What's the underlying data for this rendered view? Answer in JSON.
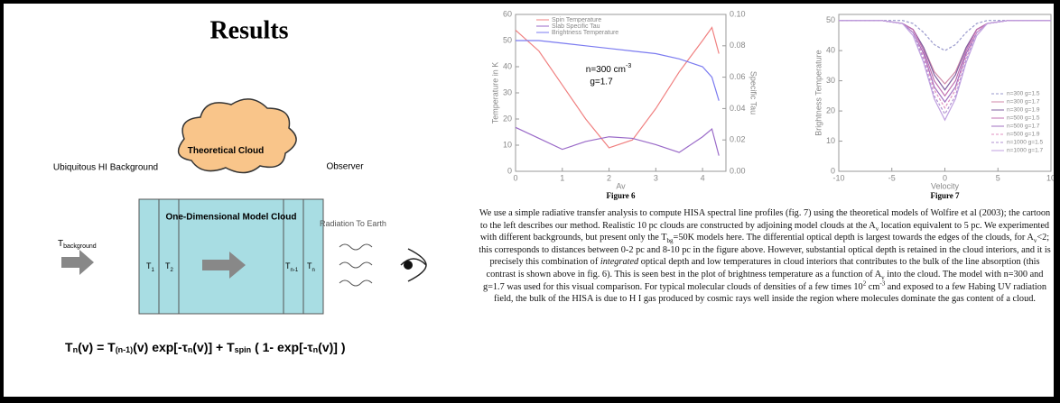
{
  "panel": {
    "title": "Results",
    "left_label": "Ubiquitous HI Background",
    "cloud_label": "Theoretical Cloud",
    "right_label": "Observer",
    "background_label": [
      "T",
      "background"
    ],
    "box_title": "One-Dimensional Model Cloud",
    "cells": [
      [
        "T",
        "1"
      ],
      [
        "T",
        "2"
      ],
      [
        "T",
        "n-1"
      ],
      [
        "T",
        "n"
      ]
    ],
    "radiation_label": "Radiation To Earth",
    "equation": [
      "T",
      "n",
      "(v) = T",
      "(n-1)",
      "(v)  exp[-τ",
      "n",
      "(v)] + T",
      "spin",
      " ( 1- exp[-τ",
      "n",
      "(v)] )"
    ]
  },
  "figure6": {
    "type": "line",
    "caption": "Figure 6",
    "ylabel": "Temperature in K",
    "y2label": "Specific Tau",
    "xlabel": "Av",
    "annotation": [
      "n=300 cm",
      "-3",
      "g=1.7"
    ],
    "x": [
      0,
      0.5,
      1,
      1.5,
      2,
      2.5,
      3,
      3.5,
      4,
      4.2,
      4.35
    ],
    "series": [
      {
        "name": "Spin Temperature",
        "color": "#f08080",
        "values": [
          54,
          46,
          33,
          20,
          9,
          12,
          24,
          38,
          50,
          55,
          45
        ]
      },
      {
        "name": "Slab Specific Tau",
        "color": "#9a6ac8",
        "axis": "y2",
        "values": [
          0.028,
          0.021,
          0.014,
          0.019,
          0.022,
          0.021,
          0.017,
          0.012,
          0.022,
          0.027,
          0.01
        ]
      },
      {
        "name": "Brightness Temperature",
        "color": "#7b7bf0",
        "values": [
          50,
          50,
          49,
          48,
          47,
          46,
          45,
          43,
          40,
          36,
          27
        ]
      }
    ],
    "xlim": [
      0,
      4.5
    ],
    "xticks": [
      0,
      1,
      2,
      3,
      4
    ],
    "ylim": [
      0,
      60
    ],
    "yticks": [
      0,
      10,
      20,
      30,
      40,
      50,
      60
    ],
    "y2lim": [
      0,
      0.1
    ],
    "y2ticks": [
      {
        "value": 0,
        "label": "0.00"
      },
      {
        "value": 0.02,
        "label": "0.02"
      },
      {
        "value": 0.04,
        "label": "0.04"
      },
      {
        "value": 0.06,
        "label": "0.06"
      },
      {
        "value": 0.08,
        "label": "0.08"
      },
      {
        "value": 0.1,
        "label": "0.10"
      }
    ]
  },
  "figure7": {
    "type": "line",
    "caption": "Figure 7",
    "ylabel": "Brightness Temperature",
    "xlabel": "Velocity",
    "x": [
      -10,
      -6,
      -4,
      -3,
      -2,
      -1,
      0,
      1,
      2,
      3,
      4,
      6,
      10
    ],
    "series": [
      {
        "name": "n=300 g=1.5",
        "color": "#9999cc",
        "dashed": true,
        "values": [
          50,
          50,
          50,
          49,
          46,
          42,
          40,
          42,
          46,
          49,
          50,
          50,
          50
        ]
      },
      {
        "name": "n=300 g=1.7",
        "color": "#d08aa8",
        "values": [
          50,
          50,
          49,
          47,
          41,
          33,
          29,
          33,
          41,
          47,
          49,
          50,
          50
        ]
      },
      {
        "name": "n=300 g=1.9",
        "color": "#8060a0",
        "values": [
          50,
          50,
          49,
          47,
          41,
          32,
          27,
          32,
          41,
          47,
          49,
          50,
          50
        ]
      },
      {
        "name": "n=500 g=1.5",
        "color": "#c070b0",
        "values": [
          50,
          50,
          49,
          47,
          40,
          30,
          25,
          30,
          40,
          47,
          49,
          50,
          50
        ]
      },
      {
        "name": "n=500 g=1.7",
        "color": "#a070c0",
        "values": [
          50,
          50,
          49,
          46,
          39,
          28,
          23,
          28,
          39,
          46,
          49,
          50,
          50
        ]
      },
      {
        "name": "n=500 g=1.9",
        "color": "#e090c0",
        "dashed": true,
        "values": [
          50,
          50,
          49,
          46,
          38,
          27,
          21,
          27,
          38,
          46,
          49,
          50,
          50
        ]
      },
      {
        "name": "n=1000 g=1.5",
        "color": "#b090d0",
        "dashed": true,
        "values": [
          50,
          50,
          49,
          46,
          37,
          25,
          19,
          25,
          37,
          46,
          49,
          50,
          50
        ]
      },
      {
        "name": "n=1000 g=1.7",
        "color": "#c0a0e0",
        "values": [
          50,
          50,
          49,
          45,
          36,
          24,
          17,
          24,
          36,
          45,
          49,
          50,
          50
        ]
      }
    ],
    "xlim": [
      -10,
      10
    ],
    "xticks": [
      -10,
      -5,
      0,
      5,
      10
    ],
    "ylim": [
      0,
      52
    ],
    "yticks": [
      0,
      10,
      20,
      30,
      40,
      50
    ]
  },
  "paragraph": [
    "We use a simple radiative transfer analysis to compute HISA spectral line profiles (fig. 7) using the theoretical models of Wolfire et al (2003); the cartoon to the left describes our method.  Realistic 10 pc clouds are constructed by adjoining model clouds at the A",
    "v",
    " location equivalent to 5  pc.  We experimented with different backgrounds, but present only the T",
    "bg",
    "=50K models here.  The differential optical depth is largest towards the edges of the clouds, for A",
    "v",
    "<2; this corresponds to distances between 0-2 pc and 8-10 pc in the figure above.  However, substantial optical depth is retained in the cloud interiors, and it is precisely this combination of ",
    "integrated",
    " optical depth and low temperatures in cloud interiors that contributes to the bulk of the line absorption (this contrast is shown above in fig. 6).  This is seen best in the plot of brightness temperature as a function of A",
    "v",
    " into the cloud.  The model with n=300 and g=1.7 was used for this visual comparison.  For typical molecular clouds of densities of a few times 10",
    "2",
    " cm",
    "-3",
    " and exposed to a few Habing UV radiation field, the bulk of the HISA is due to H I gas produced by cosmic rays well inside the region where molecules dominate the gas content of a cloud."
  ]
}
